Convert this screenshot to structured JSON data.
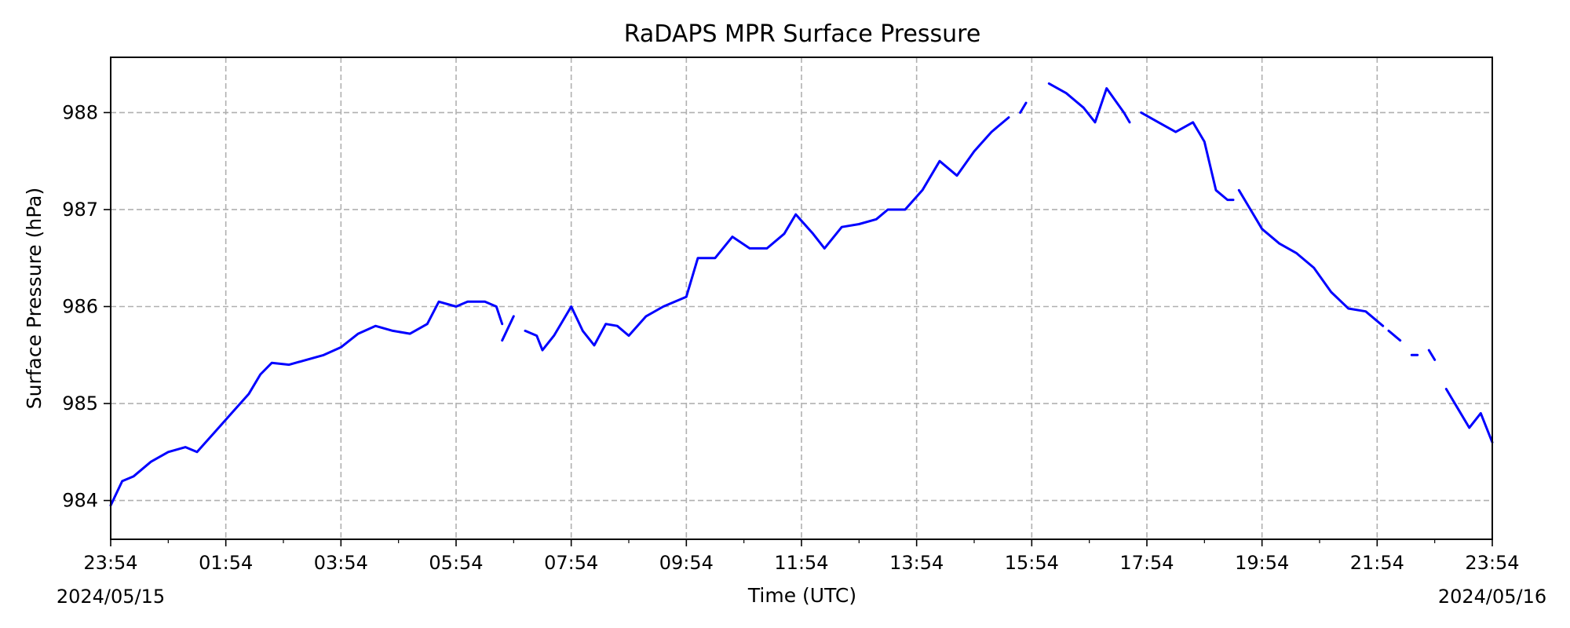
{
  "chart_data": {
    "type": "line",
    "title": "RaDAPS MPR Surface Pressure",
    "xlabel": "Time (UTC)",
    "ylabel": "Surface Pressure (hPa)",
    "grid": true,
    "line_color": "#0000ff",
    "x_tick_labels": [
      "23:54",
      "01:54",
      "03:54",
      "05:54",
      "07:54",
      "09:54",
      "11:54",
      "13:54",
      "15:54",
      "17:54",
      "19:54",
      "21:54",
      "23:54"
    ],
    "x_start_date": "2024/05/15",
    "x_end_date": "2024/05/16",
    "x_range": [
      "2024-05-15T23:54",
      "2024-05-16T23:54"
    ],
    "y_ticks": [
      984,
      985,
      986,
      987,
      988
    ],
    "ylim": [
      983.6,
      988.57
    ],
    "series": [
      {
        "segments": [
          [
            [
              "2024-05-15T23:54",
              983.95
            ],
            [
              "2024-05-16T00:06",
              984.2
            ],
            [
              "2024-05-16T00:18",
              984.25
            ],
            [
              "2024-05-16T00:36",
              984.4
            ],
            [
              "2024-05-16T00:54",
              984.5
            ],
            [
              "2024-05-16T01:12",
              984.55
            ],
            [
              "2024-05-16T01:24",
              984.5
            ],
            [
              "2024-05-16T01:42",
              984.7
            ],
            [
              "2024-05-16T02:00",
              984.9
            ],
            [
              "2024-05-16T02:18",
              985.1
            ],
            [
              "2024-05-16T02:30",
              985.3
            ],
            [
              "2024-05-16T02:42",
              985.42
            ],
            [
              "2024-05-16T03:00",
              985.4
            ],
            [
              "2024-05-16T03:18",
              985.45
            ],
            [
              "2024-05-16T03:36",
              985.5
            ],
            [
              "2024-05-16T03:54",
              985.58
            ],
            [
              "2024-05-16T04:12",
              985.72
            ],
            [
              "2024-05-16T04:30",
              985.8
            ],
            [
              "2024-05-16T04:48",
              985.75
            ],
            [
              "2024-05-16T05:06",
              985.72
            ],
            [
              "2024-05-16T05:24",
              985.82
            ],
            [
              "2024-05-16T05:36",
              986.05
            ],
            [
              "2024-05-16T05:54",
              986.0
            ],
            [
              "2024-05-16T06:06",
              986.05
            ],
            [
              "2024-05-16T06:24",
              986.05
            ],
            [
              "2024-05-16T06:36",
              986.0
            ],
            [
              "2024-05-16T06:42",
              985.82
            ]
          ],
          [
            [
              "2024-05-16T06:42",
              985.65
            ],
            [
              "2024-05-16T06:54",
              985.9
            ]
          ],
          [
            [
              "2024-05-16T07:06",
              985.75
            ],
            [
              "2024-05-16T07:18",
              985.7
            ],
            [
              "2024-05-16T07:24",
              985.55
            ],
            [
              "2024-05-16T07:36",
              985.7
            ],
            [
              "2024-05-16T07:54",
              986.0
            ],
            [
              "2024-05-16T08:06",
              985.75
            ],
            [
              "2024-05-16T08:18",
              985.6
            ],
            [
              "2024-05-16T08:30",
              985.82
            ],
            [
              "2024-05-16T08:42",
              985.8
            ],
            [
              "2024-05-16T08:54",
              985.7
            ],
            [
              "2024-05-16T09:12",
              985.9
            ],
            [
              "2024-05-16T09:30",
              986.0
            ],
            [
              "2024-05-16T09:54",
              986.1
            ],
            [
              "2024-05-16T10:06",
              986.5
            ],
            [
              "2024-05-16T10:24",
              986.5
            ],
            [
              "2024-05-16T10:42",
              986.72
            ],
            [
              "2024-05-16T11:00",
              986.6
            ],
            [
              "2024-05-16T11:18",
              986.6
            ],
            [
              "2024-05-16T11:36",
              986.75
            ],
            [
              "2024-05-16T11:48",
              986.95
            ],
            [
              "2024-05-16T12:06",
              986.75
            ],
            [
              "2024-05-16T12:18",
              986.6
            ],
            [
              "2024-05-16T12:36",
              986.82
            ],
            [
              "2024-05-16T12:54",
              986.85
            ],
            [
              "2024-05-16T13:12",
              986.9
            ],
            [
              "2024-05-16T13:24",
              987.0
            ],
            [
              "2024-05-16T13:42",
              987.0
            ],
            [
              "2024-05-16T14:00",
              987.2
            ],
            [
              "2024-05-16T14:18",
              987.5
            ],
            [
              "2024-05-16T14:36",
              987.35
            ],
            [
              "2024-05-16T14:54",
              987.6
            ],
            [
              "2024-05-16T15:12",
              987.8
            ],
            [
              "2024-05-16T15:30",
              987.95
            ]
          ],
          [
            [
              "2024-05-16T15:42",
              988.0
            ],
            [
              "2024-05-16T15:48",
              988.1
            ]
          ],
          [
            [
              "2024-05-16T16:12",
              988.3
            ],
            [
              "2024-05-16T16:30",
              988.2
            ],
            [
              "2024-05-16T16:48",
              988.05
            ],
            [
              "2024-05-16T17:00",
              987.9
            ],
            [
              "2024-05-16T17:12",
              988.25
            ],
            [
              "2024-05-16T17:30",
              988.0
            ],
            [
              "2024-05-16T17:36",
              987.9
            ]
          ],
          [
            [
              "2024-05-16T17:48",
              988.0
            ],
            [
              "2024-05-16T18:06",
              987.9
            ],
            [
              "2024-05-16T18:24",
              987.8
            ],
            [
              "2024-05-16T18:42",
              987.9
            ],
            [
              "2024-05-16T18:54",
              987.7
            ],
            [
              "2024-05-16T19:06",
              987.2
            ],
            [
              "2024-05-16T19:18",
              987.1
            ],
            [
              "2024-05-16T19:24",
              987.1
            ]
          ],
          [
            [
              "2024-05-16T19:30",
              987.2
            ],
            [
              "2024-05-16T19:54",
              986.8
            ],
            [
              "2024-05-16T20:12",
              986.65
            ],
            [
              "2024-05-16T20:30",
              986.55
            ],
            [
              "2024-05-16T20:48",
              986.4
            ],
            [
              "2024-05-16T21:06",
              986.15
            ],
            [
              "2024-05-16T21:24",
              985.98
            ],
            [
              "2024-05-16T21:42",
              985.95
            ],
            [
              "2024-05-16T22:00",
              985.8
            ]
          ],
          [
            [
              "2024-05-16T22:06",
              985.75
            ],
            [
              "2024-05-16T22:18",
              985.65
            ]
          ],
          [
            [
              "2024-05-16T22:30",
              985.5
            ],
            [
              "2024-05-16T22:36",
              985.5
            ]
          ],
          [
            [
              "2024-05-16T22:48",
              985.55
            ],
            [
              "2024-05-16T22:54",
              985.45
            ]
          ],
          [
            [
              "2024-05-16T23:06",
              985.15
            ],
            [
              "2024-05-16T23:18",
              984.95
            ],
            [
              "2024-05-16T23:30",
              984.75
            ],
            [
              "2024-05-16T23:42",
              984.9
            ],
            [
              "2024-05-16T23:54",
              984.6
            ]
          ]
        ]
      }
    ]
  }
}
